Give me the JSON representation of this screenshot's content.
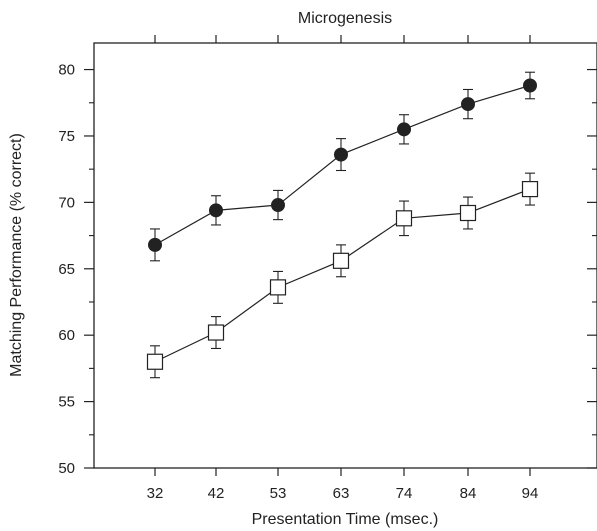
{
  "chart_data": {
    "type": "line",
    "title": "Microgenesis",
    "xlabel": "Presentation Time (msec.)",
    "ylabel": "Matching Performance (% correct)",
    "categories": [
      "32",
      "42",
      "53",
      "63",
      "74",
      "84",
      "94"
    ],
    "ylim": [
      50,
      82
    ],
    "y_ticks": [
      50,
      55,
      60,
      65,
      70,
      75,
      80
    ],
    "grid": false,
    "legend": "none",
    "series": [
      {
        "marker": "filled-circle",
        "color": "#222222",
        "values": [
          66.8,
          69.4,
          69.8,
          73.6,
          75.5,
          77.4,
          78.8
        ],
        "errors": [
          1.2,
          1.1,
          1.1,
          1.2,
          1.1,
          1.1,
          1.0
        ]
      },
      {
        "marker": "open-square",
        "color": "#222222",
        "values": [
          58.0,
          60.2,
          63.6,
          65.6,
          68.8,
          69.2,
          71.0
        ],
        "errors": [
          1.2,
          1.2,
          1.2,
          1.2,
          1.3,
          1.2,
          1.2
        ]
      }
    ]
  }
}
